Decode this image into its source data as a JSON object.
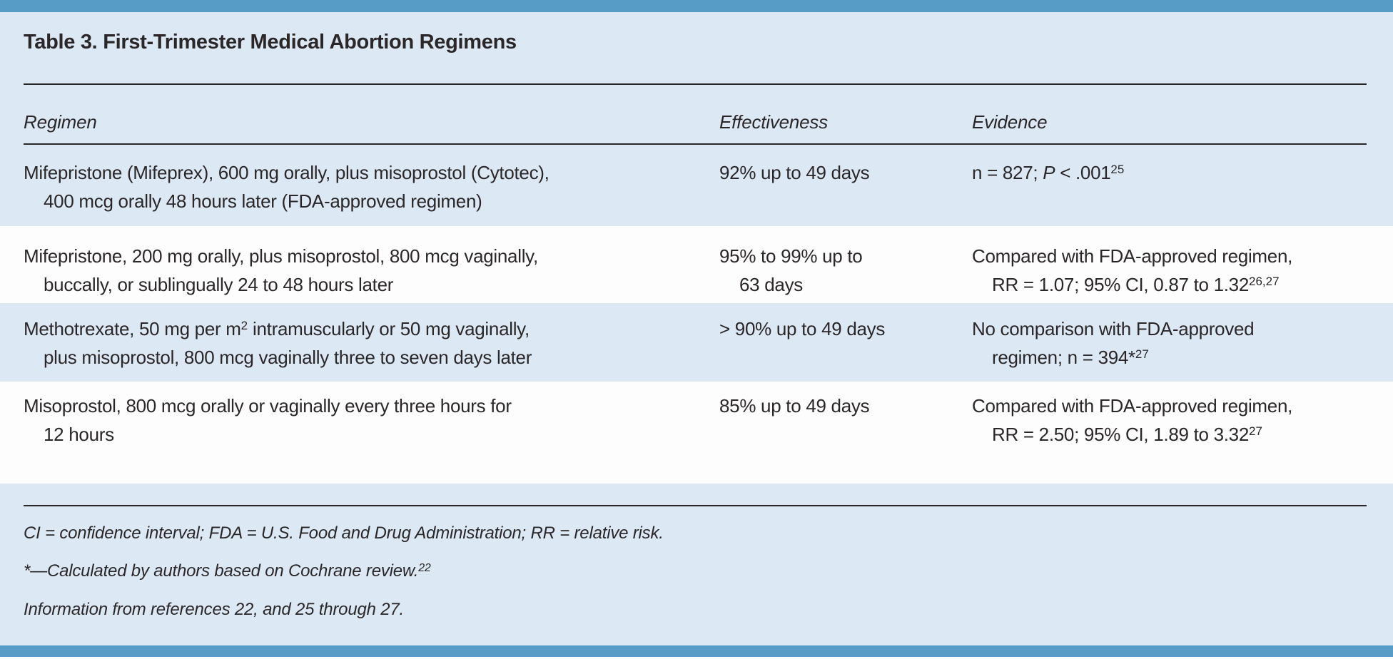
{
  "table": {
    "title": "Table 3. First-Trimester Medical Abortion Regimens",
    "columns": {
      "regimen": "Regimen",
      "effectiveness": "Effectiveness",
      "evidence": "Evidence"
    },
    "rows": [
      {
        "regimen": [
          "Mifepristone (Mifeprex), 600 mg orally, plus misoprostol (Cytotec),",
          "400 mcg orally 48 hours later (FDA-approved regimen)"
        ],
        "effectiveness": [
          "92% up to 49 days"
        ],
        "evidence": [
          "n = 827; <i>P</i> &lt; .001<sup>25</sup>"
        ]
      },
      {
        "regimen": [
          "Mifepristone, 200 mg orally, plus misoprostol, 800 mcg vaginally,",
          "buccally, or sublingually 24 to 48 hours later"
        ],
        "effectiveness": [
          "95% to 99% up to",
          "63 days"
        ],
        "evidence": [
          "Compared with FDA-approved regimen,",
          "RR = 1.07; 95% CI, 0.87 to 1.32<sup>26,27</sup>"
        ]
      },
      {
        "regimen": [
          "Methotrexate, 50 mg per m<sup>2</sup> intramuscularly or 50 mg vaginally,",
          "plus misoprostol, 800 mcg vaginally three to seven days later"
        ],
        "effectiveness": [
          "&gt; 90% up to 49 days"
        ],
        "evidence": [
          "No comparison with FDA-approved",
          "regimen; n = 394*<sup>27</sup>"
        ]
      },
      {
        "regimen": [
          "Misoprostol, 800 mcg orally or vaginally every three hours for",
          "12 hours"
        ],
        "effectiveness": [
          "85% up to 49 days"
        ],
        "evidence": [
          "Compared with FDA-approved regimen,",
          "RR = 2.50; 95% CI, 1.89 to 3.32<sup>27</sup>"
        ]
      }
    ],
    "footnotes": [
      "CI = confidence interval; FDA = U.S. Food and Drug Administration; RR = relative risk.",
      "*—Calculated by authors based on Cochrane review.<sup>22</sup>",
      "Information from references 22, and 25 through 27."
    ]
  },
  "colors": {
    "accent_blue": "#569cc6",
    "panel_blue": "#dce8f4",
    "stripe_white": "#fdfdfe",
    "text": "#2b2728",
    "rule": "#2b2728"
  }
}
